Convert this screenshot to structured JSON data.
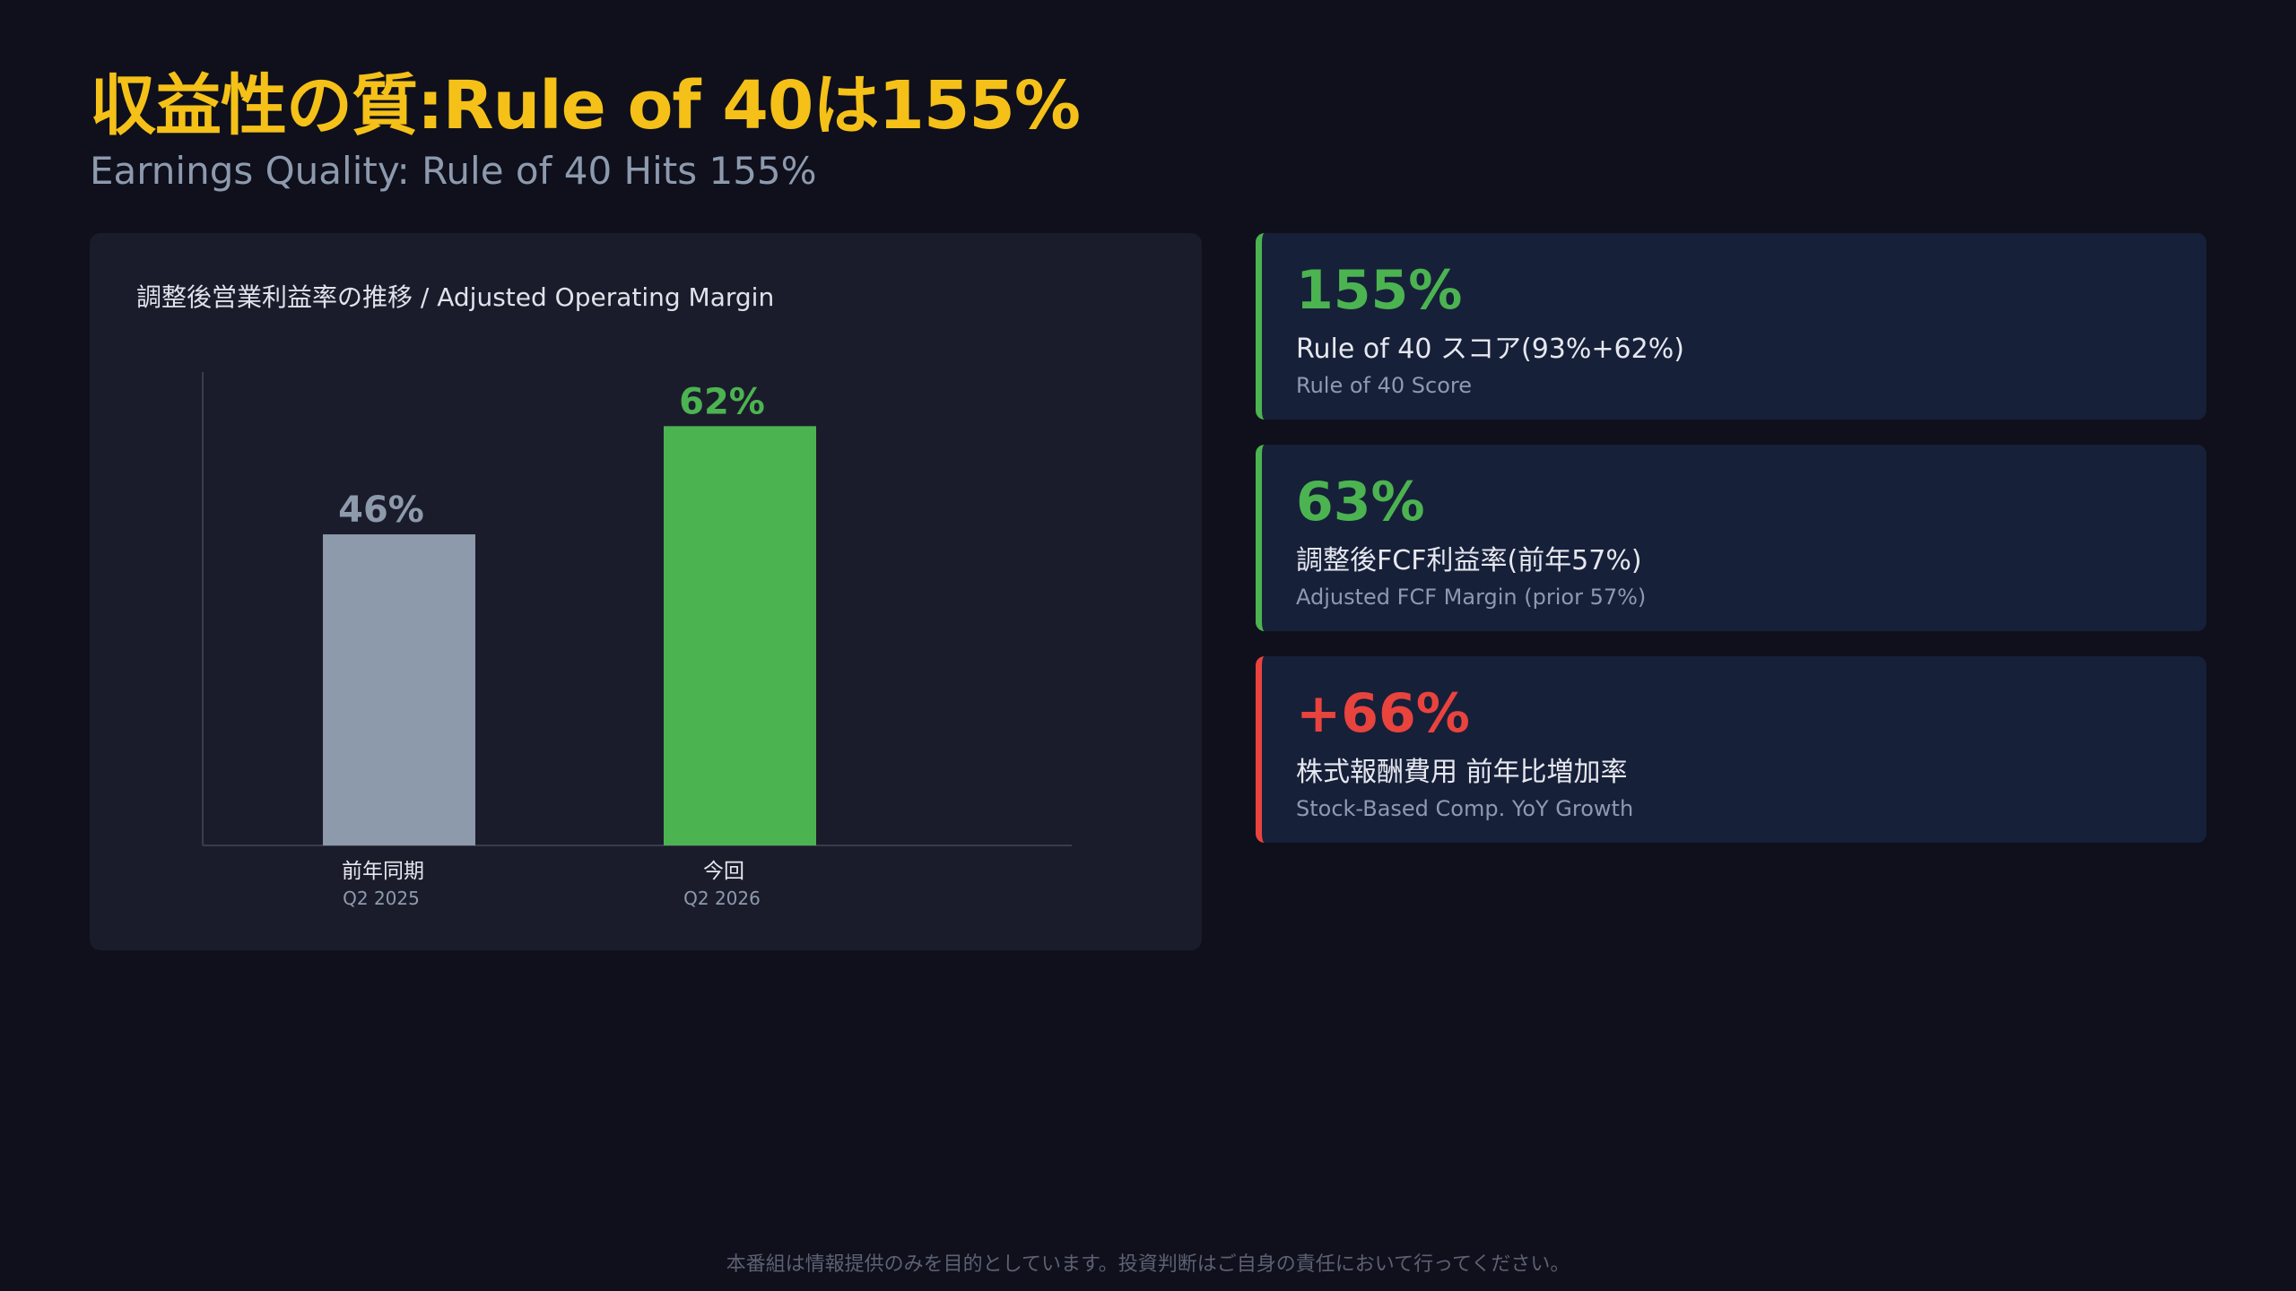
{
  "header": {
    "title": "収益性の質:Rule of 40は155%",
    "subtitle": "Earnings Quality: Rule of 40 Hits 155%"
  },
  "chart_data": {
    "type": "bar",
    "title": "調整後営業利益率の推移 / Adjusted Operating Margin",
    "categories": [
      "前年同期",
      "今回"
    ],
    "category_sublabels": [
      "Q2 2025",
      "Q2 2026"
    ],
    "values": [
      46,
      62
    ],
    "value_labels": [
      "46%",
      "62%"
    ],
    "unit": "%",
    "bar_colors": [
      "#8c9aab",
      "#4cb351"
    ],
    "label_colors": [
      "#8c9aab",
      "#4cb351"
    ],
    "ylim": [
      0,
      70
    ],
    "grid": false,
    "xlabel": "",
    "ylabel": ""
  },
  "cards": [
    {
      "value": "155%",
      "label": "Rule of 40 スコア(93%+62%)",
      "sub": "Rule of 40 Score",
      "color": "#4cb351"
    },
    {
      "value": "63%",
      "label": "調整後FCF利益率(前年57%)",
      "sub": "Adjusted FCF Margin (prior 57%)",
      "color": "#4cb351"
    },
    {
      "value": "+66%",
      "label": "株式報酬費用 前年比増加率",
      "sub": "Stock-Based Comp. YoY Growth",
      "color": "#e9433d"
    }
  ],
  "footer": {
    "disclaimer": "本番組は情報提供のみを目的としています。投資判断はご自身の責任において行ってください。"
  }
}
